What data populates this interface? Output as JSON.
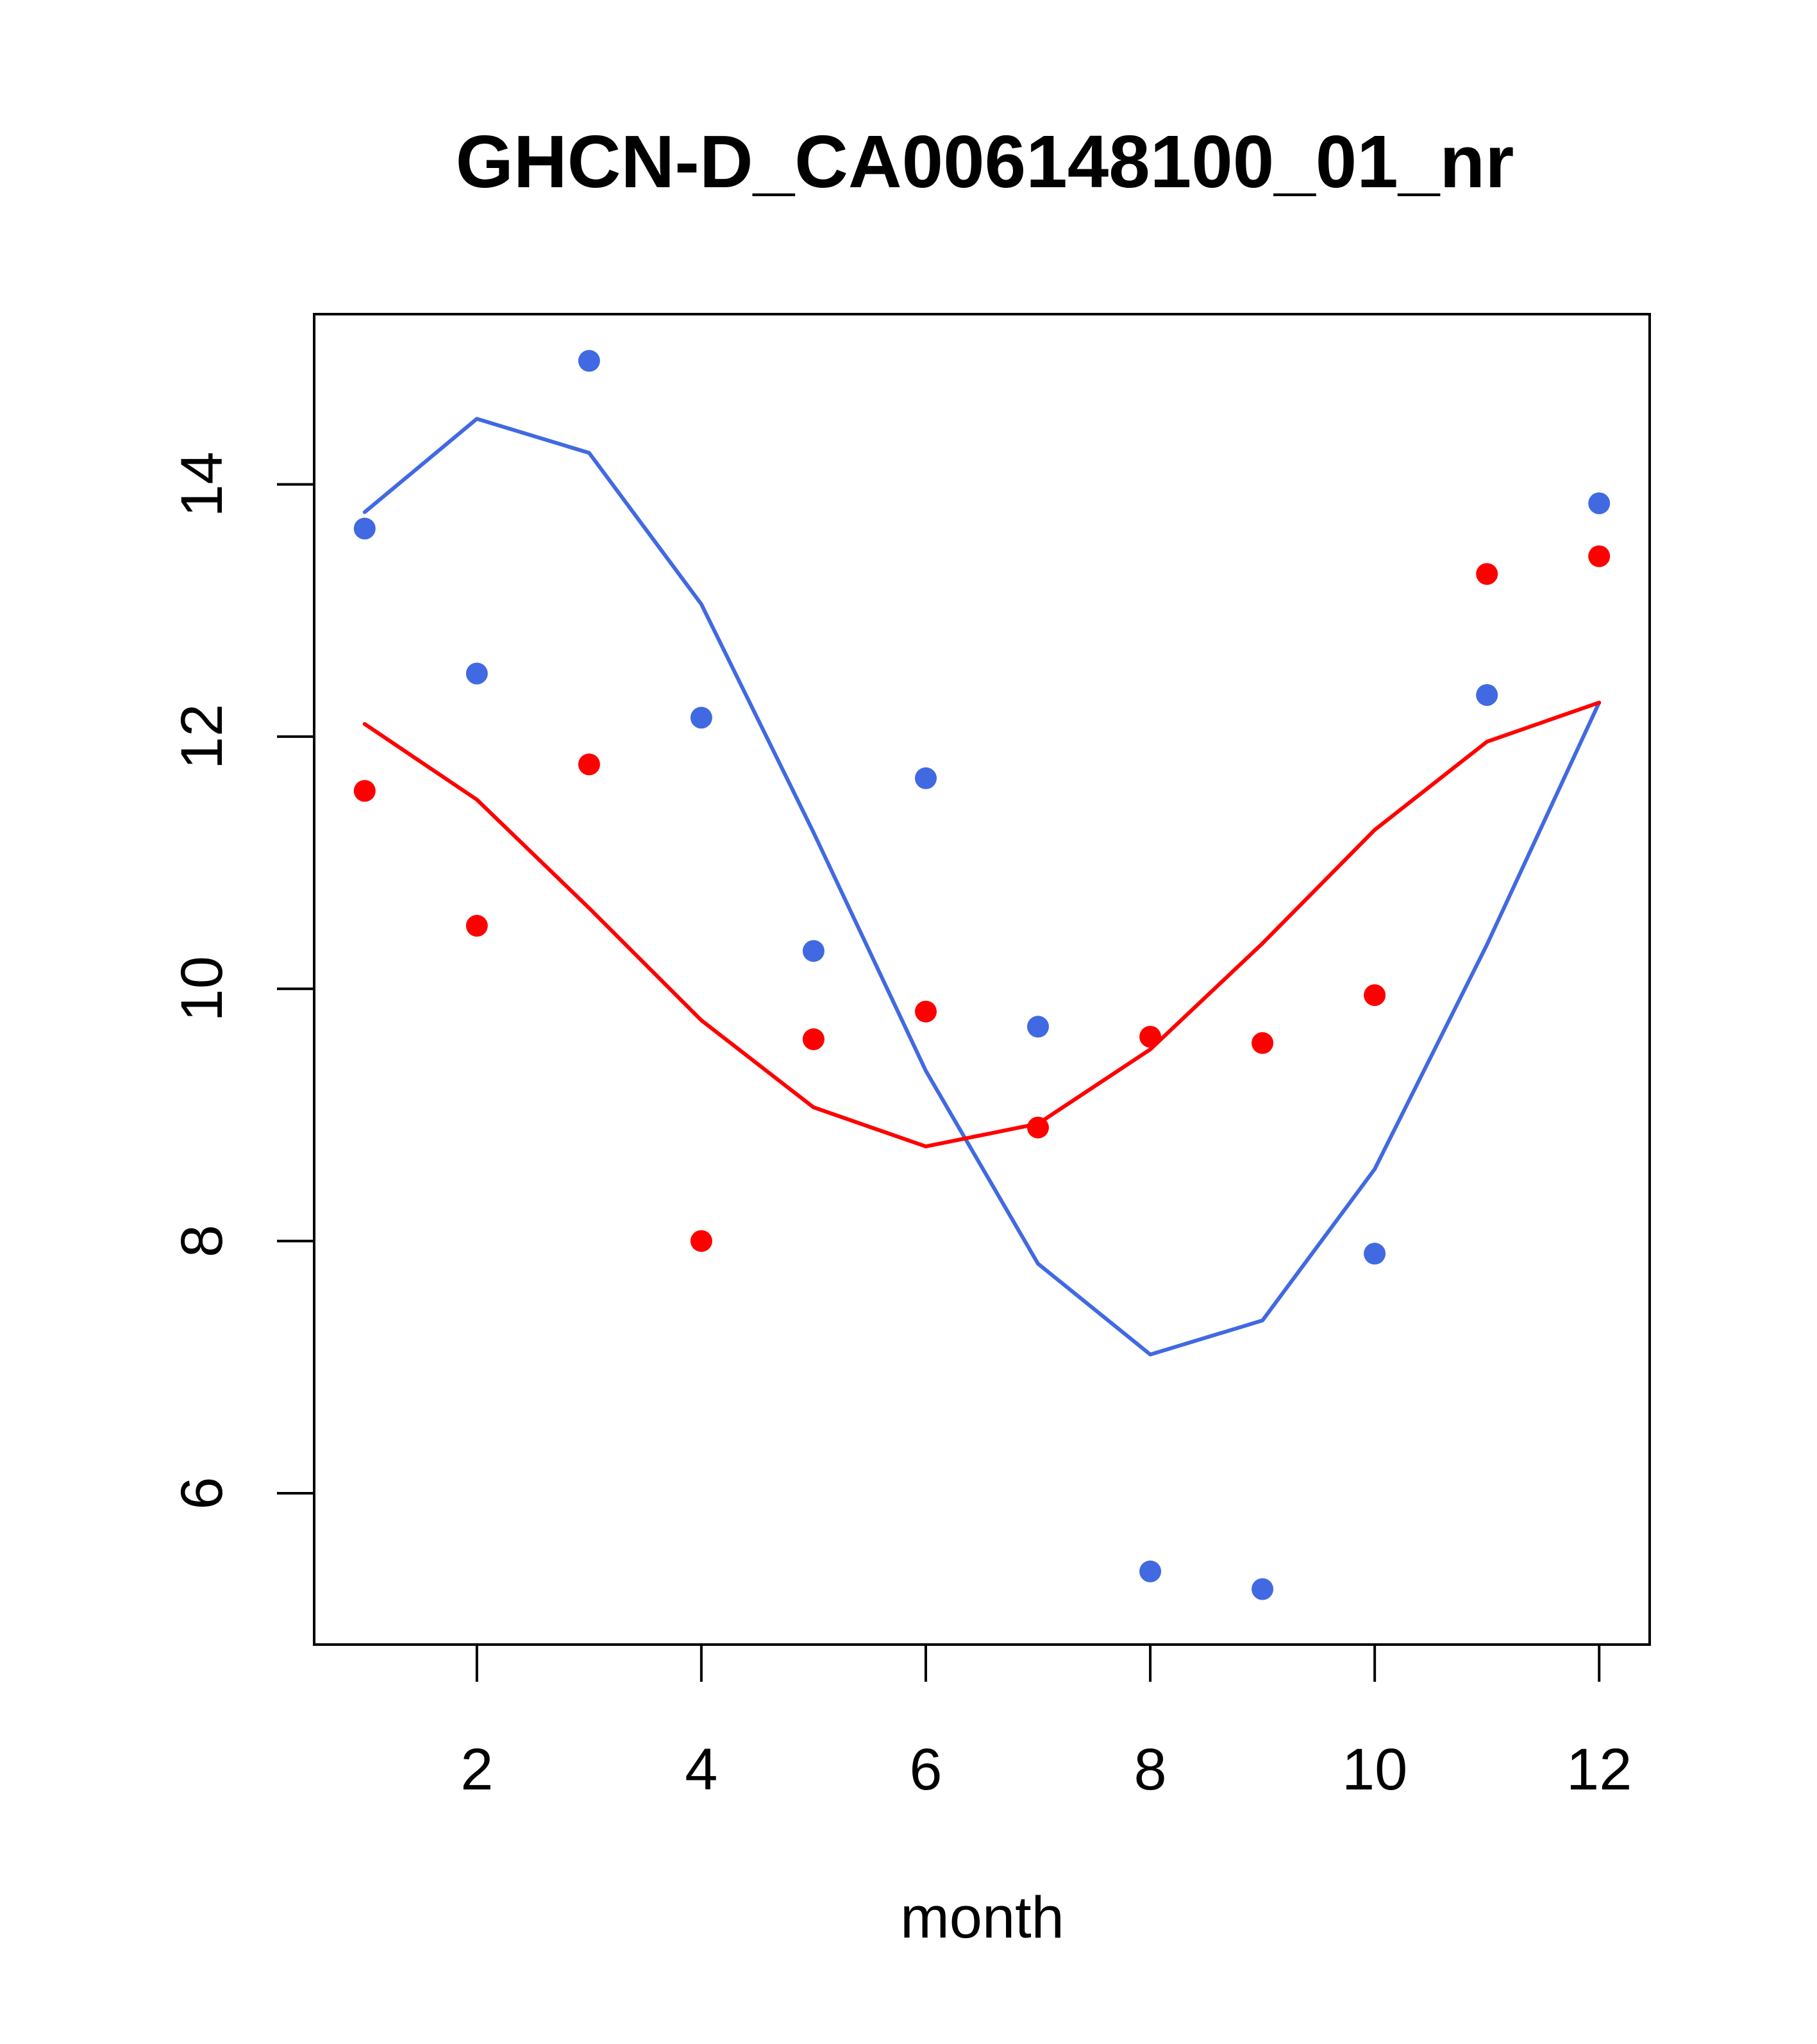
{
  "chart_data": {
    "type": "scatter",
    "title": "GHCN-D_CA006148100_01_nr",
    "xlabel": "month",
    "ylabel": "",
    "xlim": [
      0.55,
      12.45
    ],
    "ylim": [
      4.8,
      15.35
    ],
    "x_ticks": [
      2,
      4,
      6,
      8,
      10,
      12
    ],
    "y_ticks": [
      6,
      8,
      10,
      12,
      14
    ],
    "grid": false,
    "legend": "none",
    "series": [
      {
        "kind": "points",
        "color": "#4169e1",
        "x": [
          1,
          2,
          3,
          4,
          5,
          6,
          7,
          8,
          9,
          10,
          11,
          12
        ],
        "y": [
          13.65,
          12.5,
          14.98,
          12.15,
          10.3,
          11.67,
          9.7,
          5.38,
          5.24,
          7.9,
          12.33,
          13.85
        ]
      },
      {
        "kind": "points",
        "color": "#ff0000",
        "x": [
          1,
          2,
          3,
          4,
          5,
          6,
          7,
          8,
          9,
          10,
          11,
          12
        ],
        "y": [
          11.57,
          10.5,
          11.78,
          8.0,
          9.6,
          9.82,
          8.9,
          9.62,
          9.57,
          9.95,
          13.29,
          13.43
        ]
      },
      {
        "kind": "line",
        "color": "#4169e1",
        "x": [
          1,
          2,
          3,
          4,
          5,
          6,
          7,
          8,
          9,
          10,
          11,
          12
        ],
        "y": [
          13.78,
          14.52,
          14.25,
          13.05,
          11.24,
          9.35,
          7.82,
          7.1,
          7.37,
          8.57,
          10.35,
          12.27
        ]
      },
      {
        "kind": "line",
        "color": "#ff0000",
        "x": [
          1,
          2,
          3,
          4,
          5,
          6,
          7,
          8,
          9,
          10,
          11,
          12
        ],
        "y": [
          12.1,
          11.5,
          10.64,
          9.75,
          9.06,
          8.75,
          8.93,
          9.52,
          10.36,
          11.26,
          11.96,
          12.27
        ]
      }
    ]
  }
}
